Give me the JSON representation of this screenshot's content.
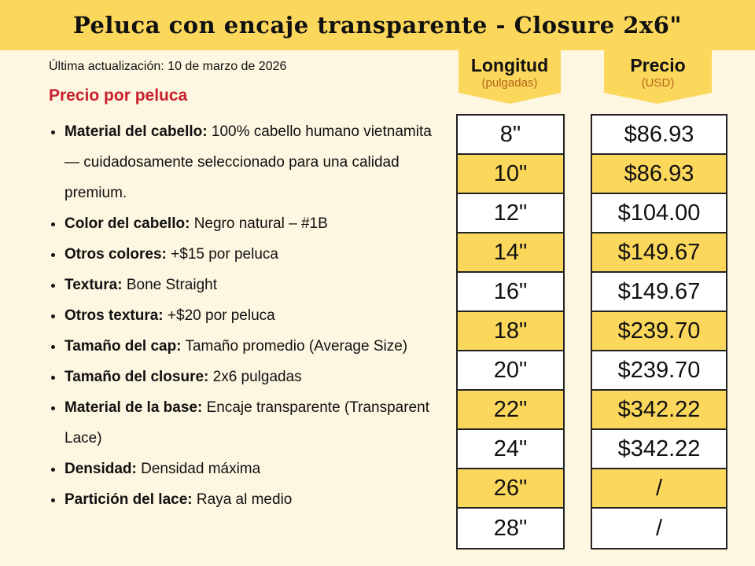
{
  "header": {
    "title": "Peluca con encaje transparente - Closure 2x6\""
  },
  "updated": "Última actualización: 10 de marzo de 2026",
  "price_label": "Precio por peluca",
  "specs": [
    {
      "label": "Material del cabello:",
      "value": "100% cabello humano vietnamita — cuidadosamente seleccionado para una calidad premium."
    },
    {
      "label": "Color del cabello:",
      "value": "Negro natural – #1B"
    },
    {
      "label": "Otros colores:",
      "value": "+$15 por peluca"
    },
    {
      "label": "Textura:",
      "value": "Bone Straight"
    },
    {
      "label": "Otros textura:",
      "value": "+$20 por peluca"
    },
    {
      "label": "Tamaño del cap:",
      "value": "Tamaño promedio (Average Size)"
    },
    {
      "label": "Tamaño del closure:",
      "value": "2x6 pulgadas"
    },
    {
      "label": "Material de la base:",
      "value": "Encaje transparente (Transparent Lace)"
    },
    {
      "label": "Densidad:",
      "value": "Densidad máxima"
    },
    {
      "label": "Partición del lace:",
      "value": "Raya al medio"
    }
  ],
  "table": {
    "length_header": "Longitud",
    "length_unit": "(pulgadas)",
    "price_header": "Precio",
    "price_unit": "(USD)",
    "rows": [
      [
        "8\"",
        "$86.93"
      ],
      [
        "10\"",
        "$86.93"
      ],
      [
        "12\"",
        "$104.00"
      ],
      [
        "14\"",
        "$149.67"
      ],
      [
        "16\"",
        "$149.67"
      ],
      [
        "18\"",
        "$239.70"
      ],
      [
        "20\"",
        "$239.70"
      ],
      [
        "22\"",
        "$342.22"
      ],
      [
        "24\"",
        "$342.22"
      ],
      [
        "26\"",
        "/"
      ],
      [
        "28\"",
        "/"
      ]
    ]
  }
}
